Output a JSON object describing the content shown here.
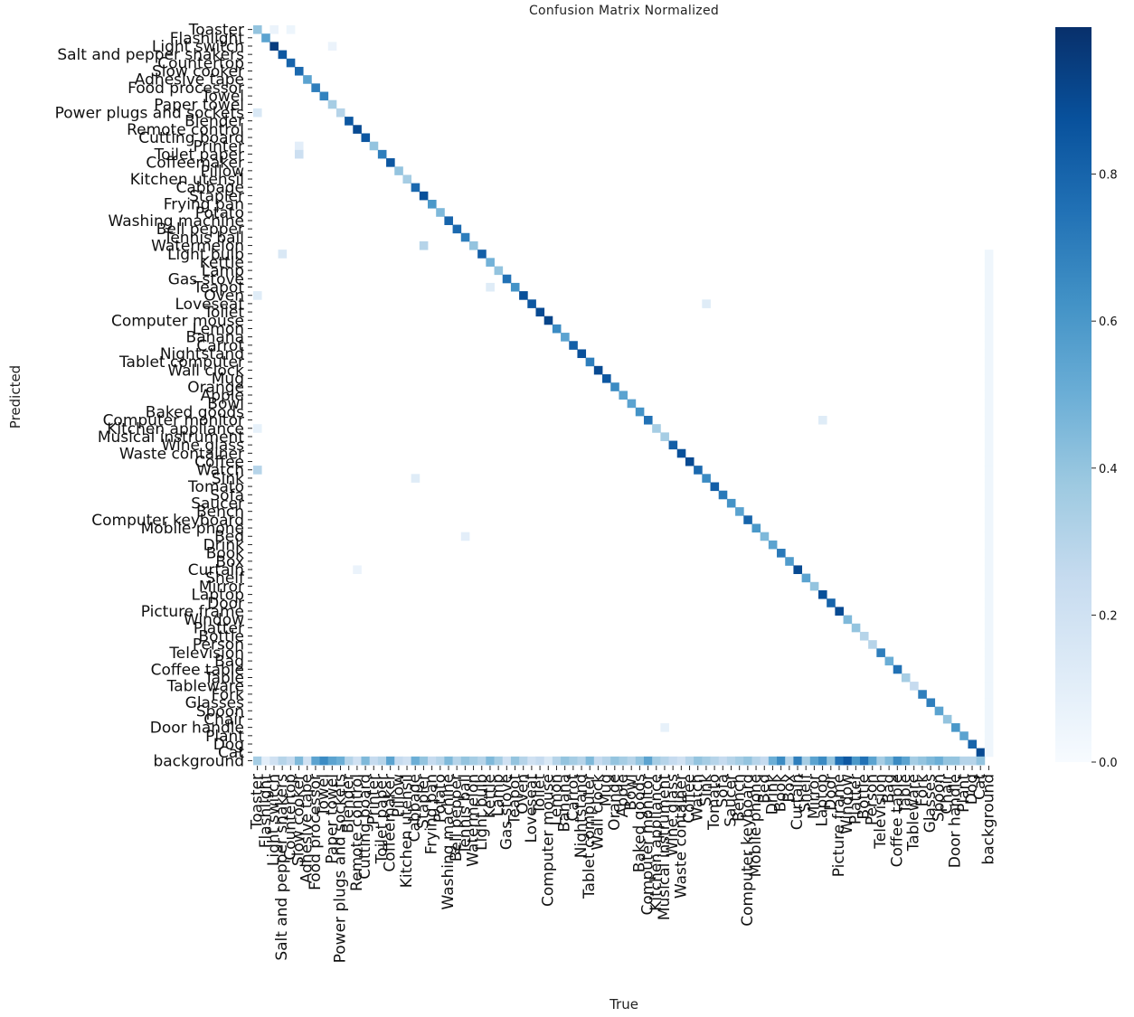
{
  "chart_data": {
    "type": "heatmap",
    "title": "Confusion Matrix Normalized",
    "xlabel": "True",
    "ylabel": "Predicted",
    "labels": [
      "Toaster",
      "Flashlight",
      "Light switch",
      "Salt and pepper shakers",
      "Countertop",
      "Slow cooker",
      "Adhesive tape",
      "Food processor",
      "Towel",
      "Paper towel",
      "Power plugs and sockets",
      "Blender",
      "Remote control",
      "Cutting board",
      "Printer",
      "Toilet paper",
      "Coffeemaker",
      "Pillow",
      "Kitchen utensil",
      "Cabbage",
      "Stapler",
      "Frying pan",
      "Potato",
      "Washing machine",
      "Bell pepper",
      "Tennis ball",
      "Watermelon",
      "Light bulb",
      "Kettle",
      "Lamp",
      "Gas stove",
      "Teapot",
      "Oven",
      "Loveseat",
      "Toilet",
      "Computer mouse",
      "Lemon",
      "Banana",
      "Carrot",
      "Nightstand",
      "Tablet computer",
      "Wall clock",
      "Mug",
      "Orange",
      "Apple",
      "Bowl",
      "Baked goods",
      "Computer monitor",
      "Kitchen appliance",
      "Musical instrument",
      "Wine glass",
      "Waste container",
      "Coffee",
      "Watch",
      "Sink",
      "Tomato",
      "Sofa",
      "Saucer",
      "Bench",
      "Computer keyboard",
      "Mobile phone",
      "Bed",
      "Drink",
      "Book",
      "Box",
      "Curtain",
      "Shelf",
      "Mirror",
      "Laptop",
      "Door",
      "Picture frame",
      "Window",
      "Platter",
      "Bottle",
      "Person",
      "Television",
      "Bag",
      "Coffee table",
      "Table",
      "Tableware",
      "Fork",
      "Glasses",
      "Spoon",
      "Chair",
      "Door handle",
      "Plant",
      "Dog",
      "Cat",
      "background"
    ],
    "diagonal": [
      0.4,
      0.55,
      0.95,
      0.85,
      0.8,
      0.78,
      0.55,
      0.7,
      0.68,
      0.35,
      0.3,
      0.85,
      0.9,
      0.85,
      0.4,
      0.7,
      0.85,
      0.4,
      0.35,
      0.78,
      0.88,
      0.6,
      0.45,
      0.8,
      0.78,
      0.7,
      0.4,
      0.82,
      0.48,
      0.4,
      0.75,
      0.62,
      0.88,
      0.85,
      0.9,
      0.92,
      0.65,
      0.55,
      0.82,
      0.88,
      0.7,
      0.9,
      0.85,
      0.65,
      0.55,
      0.55,
      0.62,
      0.75,
      0.35,
      0.35,
      0.82,
      0.88,
      0.9,
      0.78,
      0.65,
      0.82,
      0.72,
      0.62,
      0.55,
      0.8,
      0.6,
      0.45,
      0.55,
      0.72,
      0.58,
      0.9,
      0.55,
      0.4,
      0.88,
      0.8,
      0.9,
      0.45,
      0.4,
      0.3,
      0.3,
      0.7,
      0.5,
      0.75,
      0.35,
      0.25,
      0.7,
      0.7,
      0.55,
      0.4,
      0.6,
      0.55,
      0.8,
      0.9,
      0.0
    ],
    "offdiagonal": [
      {
        "row": "Toaster",
        "col": "Light switch",
        "value": 0.06
      },
      {
        "row": "Toaster",
        "col": "Countertop",
        "value": 0.05
      },
      {
        "row": "Light switch",
        "col": "Paper towel",
        "value": 0.06
      },
      {
        "row": "Power plugs and sockets",
        "col": "Toaster",
        "value": 0.15
      },
      {
        "row": "Printer",
        "col": "Slow cooker",
        "value": 0.1
      },
      {
        "row": "Toilet paper",
        "col": "Slow cooker",
        "value": 0.22
      },
      {
        "row": "Watermelon",
        "col": "Stapler",
        "value": 0.3
      },
      {
        "row": "Light bulb",
        "col": "Salt and pepper shakers",
        "value": 0.15
      },
      {
        "row": "Teapot",
        "col": "Kettle",
        "value": 0.12
      },
      {
        "row": "Oven",
        "col": "Toaster",
        "value": 0.12
      },
      {
        "row": "Loveseat",
        "col": "Sink",
        "value": 0.12
      },
      {
        "row": "Computer monitor",
        "col": "Laptop",
        "value": 0.12
      },
      {
        "row": "Kitchen appliance",
        "col": "Toaster",
        "value": 0.08
      },
      {
        "row": "Watch",
        "col": "Toaster",
        "value": 0.3
      },
      {
        "row": "Sink",
        "col": "Cabbage",
        "value": 0.12
      },
      {
        "row": "Bed",
        "col": "Tennis ball",
        "value": 0.1
      },
      {
        "row": "Curtain",
        "col": "Remote control",
        "value": 0.06
      },
      {
        "row": "Door handle",
        "col": "Musical instrument",
        "value": 0.08
      }
    ],
    "background_row": [
      0.35,
      0.1,
      0.2,
      0.3,
      0.25,
      0.45,
      0.2,
      0.55,
      0.65,
      0.55,
      0.5,
      0.3,
      0.2,
      0.45,
      0.25,
      0.3,
      0.55,
      0.25,
      0.2,
      0.5,
      0.4,
      0.25,
      0.3,
      0.45,
      0.3,
      0.4,
      0.35,
      0.3,
      0.45,
      0.35,
      0.2,
      0.4,
      0.3,
      0.2,
      0.25,
      0.15,
      0.3,
      0.4,
      0.35,
      0.3,
      0.45,
      0.25,
      0.3,
      0.4,
      0.35,
      0.3,
      0.4,
      0.55,
      0.35,
      0.3,
      0.25,
      0.2,
      0.3,
      0.4,
      0.35,
      0.3,
      0.25,
      0.3,
      0.35,
      0.4,
      0.3,
      0.25,
      0.5,
      0.65,
      0.3,
      0.7,
      0.35,
      0.55,
      0.65,
      0.4,
      0.75,
      0.85,
      0.6,
      0.75,
      0.55,
      0.35,
      0.45,
      0.65,
      0.55,
      0.35,
      0.4,
      0.45,
      0.5,
      0.4,
      0.4,
      0.3,
      0.3,
      0.4,
      0.0
    ],
    "background_column": {
      "value": 0.04,
      "row_range": [
        "Light bulb",
        "Cat"
      ]
    },
    "colorbar": {
      "min": 0.0,
      "max": 1.0,
      "ticks": [
        0.0,
        0.2,
        0.4,
        0.6,
        0.8
      ],
      "tick_labels": [
        "0.0",
        "0.2",
        "0.4",
        "0.6",
        "0.8"
      ],
      "colormap": "Blues"
    },
    "colors": {
      "low": "#f7fbff",
      "high": "#08306b"
    }
  }
}
